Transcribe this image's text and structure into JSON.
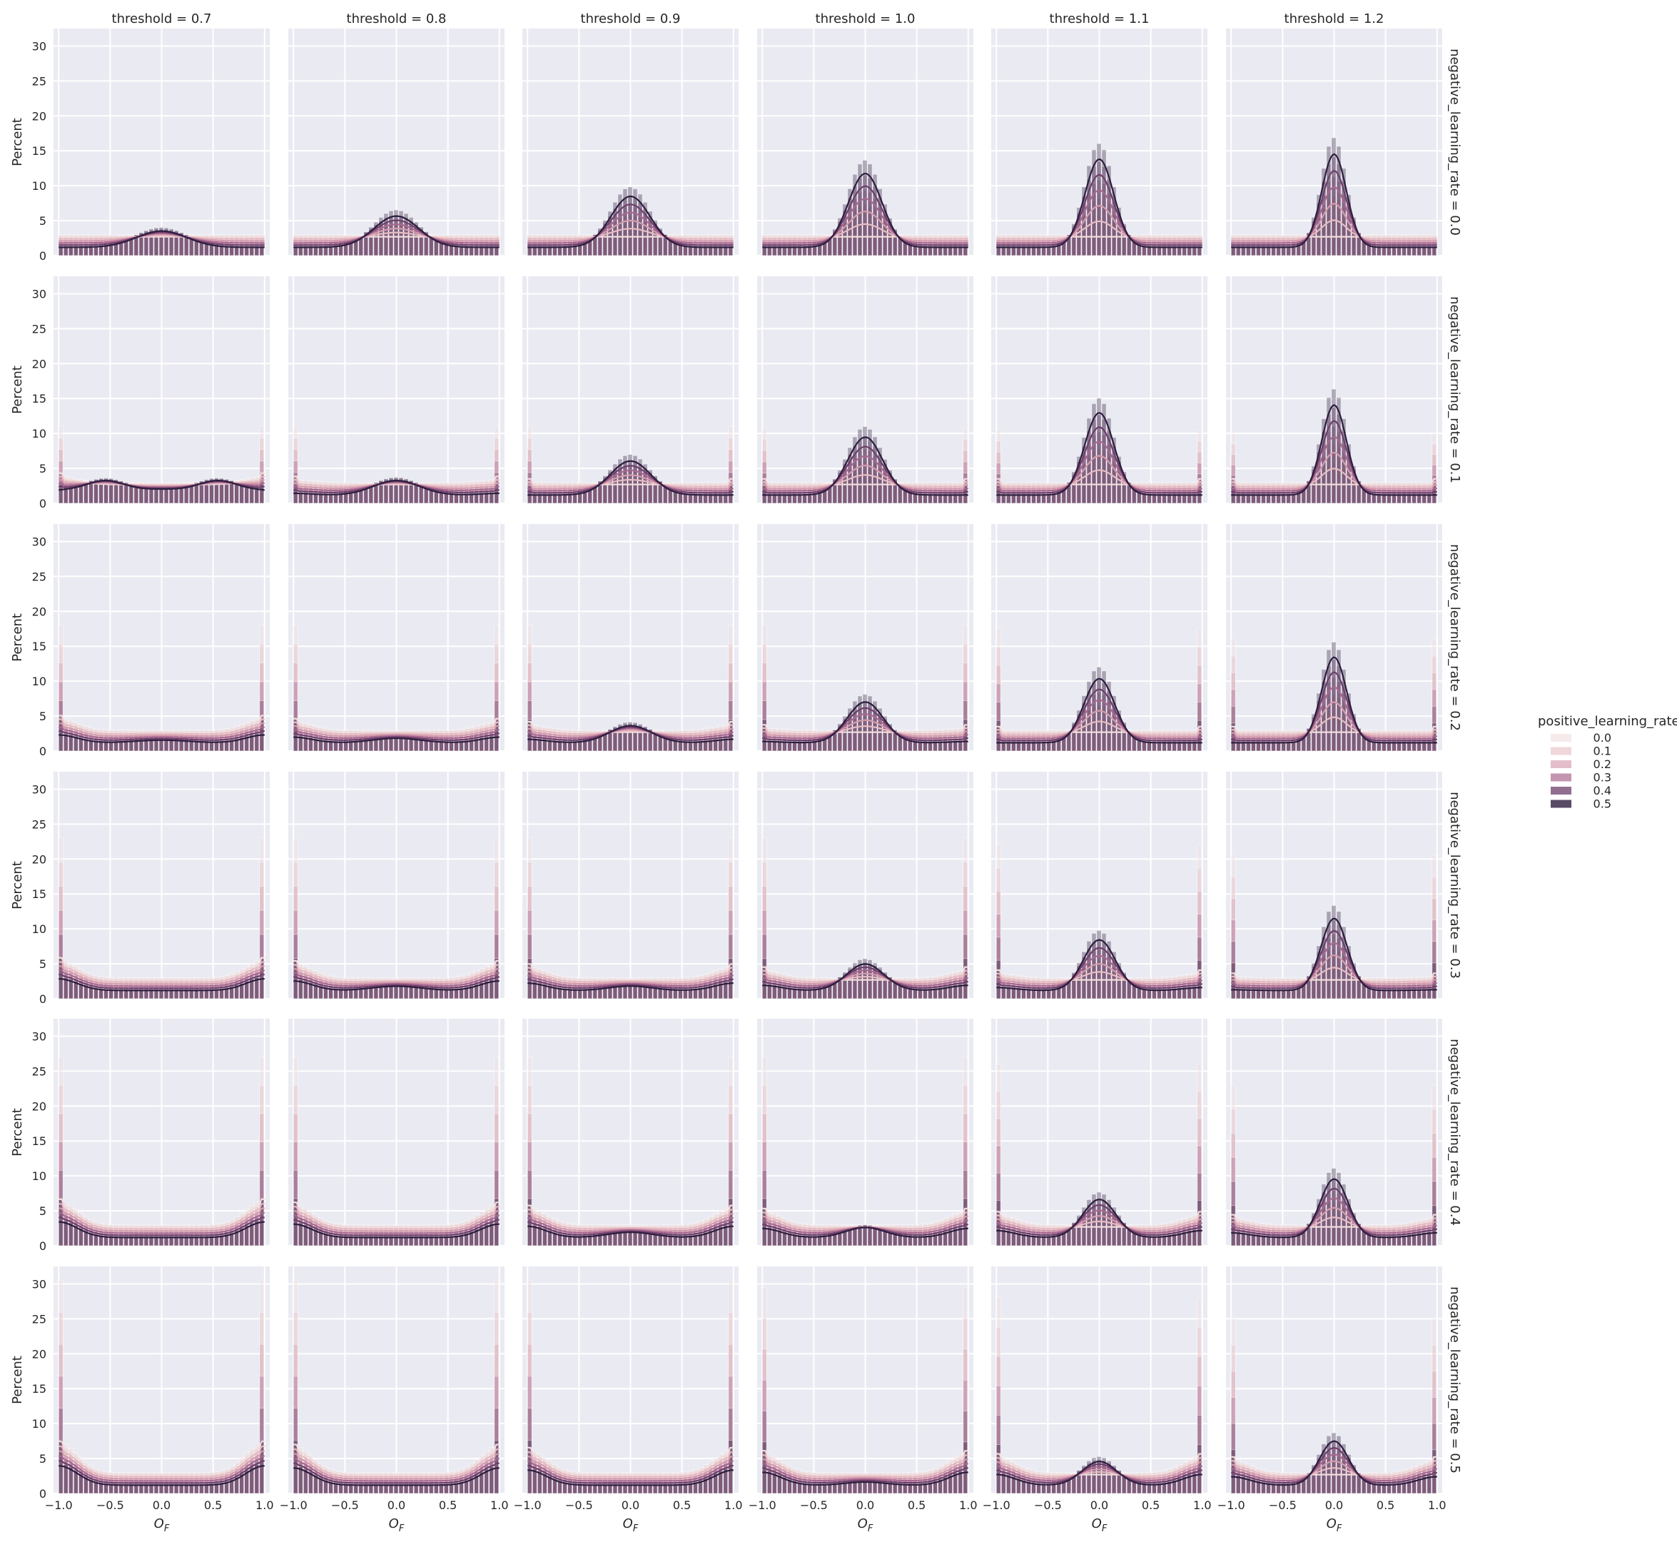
{
  "figure": {
    "col_variable": "threshold",
    "row_variable": "negative_learning_rate",
    "col_titles": [
      "threshold = 0.7",
      "threshold = 0.8",
      "threshold = 0.9",
      "threshold = 1.0",
      "threshold = 1.1",
      "threshold = 1.2"
    ],
    "row_titles": [
      "negative_learning_rate = 0.0",
      "negative_learning_rate = 0.1",
      "negative_learning_rate = 0.2",
      "negative_learning_rate = 0.3",
      "negative_learning_rate = 0.4",
      "negative_learning_rate = 0.5"
    ],
    "xlabel_main": "O",
    "xlabel_sub": "F",
    "ylabel": "Percent"
  },
  "legend": {
    "title": "positive_learning_rate",
    "entries": [
      "0.0",
      "0.1",
      "0.2",
      "0.3",
      "0.4",
      "0.5"
    ]
  },
  "colors": {
    "background": "#eaeaf2",
    "hue_0.0": "#f0dcdc",
    "hue_0.1": "#e6bcc2",
    "hue_0.2": "#d49bad",
    "hue_0.3": "#a8688f",
    "hue_0.4": "#6e3f6b",
    "hue_0.5": "#2d1e3e"
  },
  "chart_data": {
    "type": "histogram-kde-facet-grid",
    "x_ticks": [
      "−1.0",
      "−0.5",
      "0.0",
      "0.5",
      "1.0"
    ],
    "x_tick_values": [
      -1.0,
      -0.5,
      0.0,
      0.5,
      1.0
    ],
    "y_ticks": [
      "0",
      "5",
      "10",
      "15",
      "20",
      "25",
      "30"
    ],
    "y_tick_values": [
      0,
      5,
      10,
      15,
      20,
      25,
      30
    ],
    "xlim": [
      -1.05,
      1.05
    ],
    "ylim": [
      0,
      32.5
    ],
    "bins": 41,
    "hue_levels": [
      0.0,
      0.1,
      0.2,
      0.3,
      0.4,
      0.5
    ],
    "columns_threshold": [
      0.7,
      0.8,
      0.9,
      1.0,
      1.1,
      1.2
    ],
    "rows_negative_learning_rate": [
      0.0,
      0.1,
      0.2,
      0.3,
      0.4,
      0.5
    ],
    "peak_percent_by_row_col_for_lr_0.5": [
      [
        6.2,
        8.5,
        10.8,
        12.8,
        14.0,
        14.8
      ],
      [
        3.2,
        5.3,
        9.0,
        12.0,
        14.0,
        14.3
      ],
      [
        3.5,
        2.5,
        6.0,
        10.5,
        13.0,
        14.3
      ],
      [
        5.0,
        5.0,
        2.3,
        9.0,
        12.7,
        14.3
      ],
      [
        6.0,
        5.8,
        5.5,
        5.0,
        12.5,
        14.3
      ],
      [
        6.2,
        6.2,
        6.0,
        3.0,
        11.3,
        14.0
      ]
    ],
    "edge_spike_percent_by_row_col_for_lr_0.0": [
      [
        2.5,
        2.5,
        2.5,
        2.5,
        2.5,
        2.5
      ],
      [
        11.0,
        11.0,
        11.0,
        10.8,
        10.5,
        10.0
      ],
      [
        18.0,
        18.0,
        18.0,
        18.0,
        17.5,
        16.0
      ],
      [
        23.0,
        23.0,
        23.0,
        23.0,
        22.0,
        20.5
      ],
      [
        27.0,
        27.0,
        27.0,
        27.0,
        26.0,
        23.0
      ],
      [
        30.5,
        30.5,
        30.5,
        29.5,
        28.0,
        25.0
      ]
    ]
  }
}
